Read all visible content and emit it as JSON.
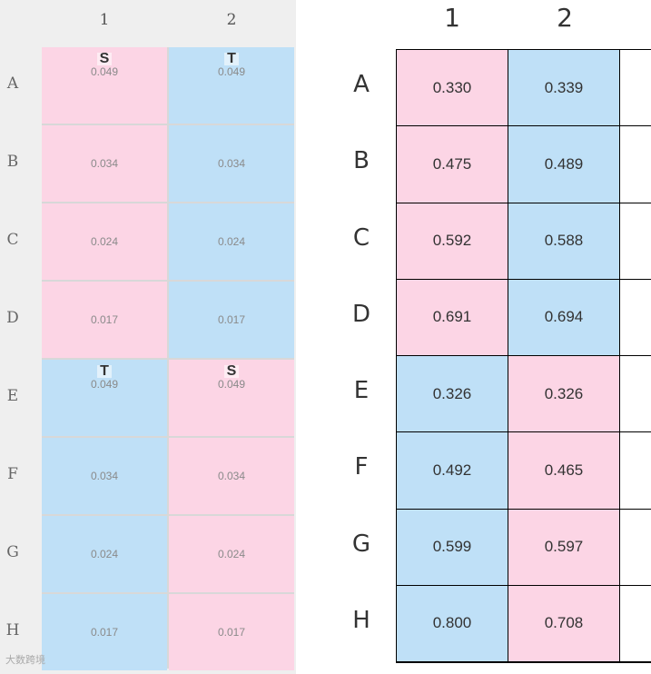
{
  "colors": {
    "pink": "#fcd5e5",
    "blue": "#bfe0f7"
  },
  "left_panel": {
    "columns": [
      "1",
      "2"
    ],
    "rows": [
      {
        "label": "A",
        "cells": [
          {
            "value": "0.049",
            "tag": "S",
            "color": "pink"
          },
          {
            "value": "0.049",
            "tag": "T",
            "color": "blue"
          }
        ]
      },
      {
        "label": "B",
        "cells": [
          {
            "value": "0.034",
            "tag": "",
            "color": "pink"
          },
          {
            "value": "0.034",
            "tag": "",
            "color": "blue"
          }
        ]
      },
      {
        "label": "C",
        "cells": [
          {
            "value": "0.024",
            "tag": "",
            "color": "pink"
          },
          {
            "value": "0.024",
            "tag": "",
            "color": "blue"
          }
        ]
      },
      {
        "label": "D",
        "cells": [
          {
            "value": "0.017",
            "tag": "",
            "color": "pink"
          },
          {
            "value": "0.017",
            "tag": "",
            "color": "blue"
          }
        ]
      },
      {
        "label": "E",
        "cells": [
          {
            "value": "0.049",
            "tag": "T",
            "color": "blue"
          },
          {
            "value": "0.049",
            "tag": "S",
            "color": "pink"
          }
        ]
      },
      {
        "label": "F",
        "cells": [
          {
            "value": "0.034",
            "tag": "",
            "color": "blue"
          },
          {
            "value": "0.034",
            "tag": "",
            "color": "pink"
          }
        ]
      },
      {
        "label": "G",
        "cells": [
          {
            "value": "0.024",
            "tag": "",
            "color": "blue"
          },
          {
            "value": "0.024",
            "tag": "",
            "color": "pink"
          }
        ]
      },
      {
        "label": "H",
        "cells": [
          {
            "value": "0.017",
            "tag": "",
            "color": "blue"
          },
          {
            "value": "0.017",
            "tag": "",
            "color": "pink"
          }
        ]
      }
    ],
    "watermark": "大数跨境"
  },
  "right_panel": {
    "columns": [
      "1",
      "2"
    ],
    "rows": [
      {
        "label": "A",
        "cells": [
          {
            "value": "0.330",
            "color": "pink"
          },
          {
            "value": "0.339",
            "color": "blue"
          }
        ]
      },
      {
        "label": "B",
        "cells": [
          {
            "value": "0.475",
            "color": "pink"
          },
          {
            "value": "0.489",
            "color": "blue"
          }
        ]
      },
      {
        "label": "C",
        "cells": [
          {
            "value": "0.592",
            "color": "pink"
          },
          {
            "value": "0.588",
            "color": "blue"
          }
        ]
      },
      {
        "label": "D",
        "cells": [
          {
            "value": "0.691",
            "color": "pink"
          },
          {
            "value": "0.694",
            "color": "blue"
          }
        ]
      },
      {
        "label": "E",
        "cells": [
          {
            "value": "0.326",
            "color": "blue"
          },
          {
            "value": "0.326",
            "color": "pink"
          }
        ]
      },
      {
        "label": "F",
        "cells": [
          {
            "value": "0.492",
            "color": "blue"
          },
          {
            "value": "0.465",
            "color": "pink"
          }
        ]
      },
      {
        "label": "G",
        "cells": [
          {
            "value": "0.599",
            "color": "blue"
          },
          {
            "value": "0.597",
            "color": "pink"
          }
        ]
      },
      {
        "label": "H",
        "cells": [
          {
            "value": "0.800",
            "color": "blue"
          },
          {
            "value": "0.708",
            "color": "pink"
          }
        ]
      }
    ]
  }
}
